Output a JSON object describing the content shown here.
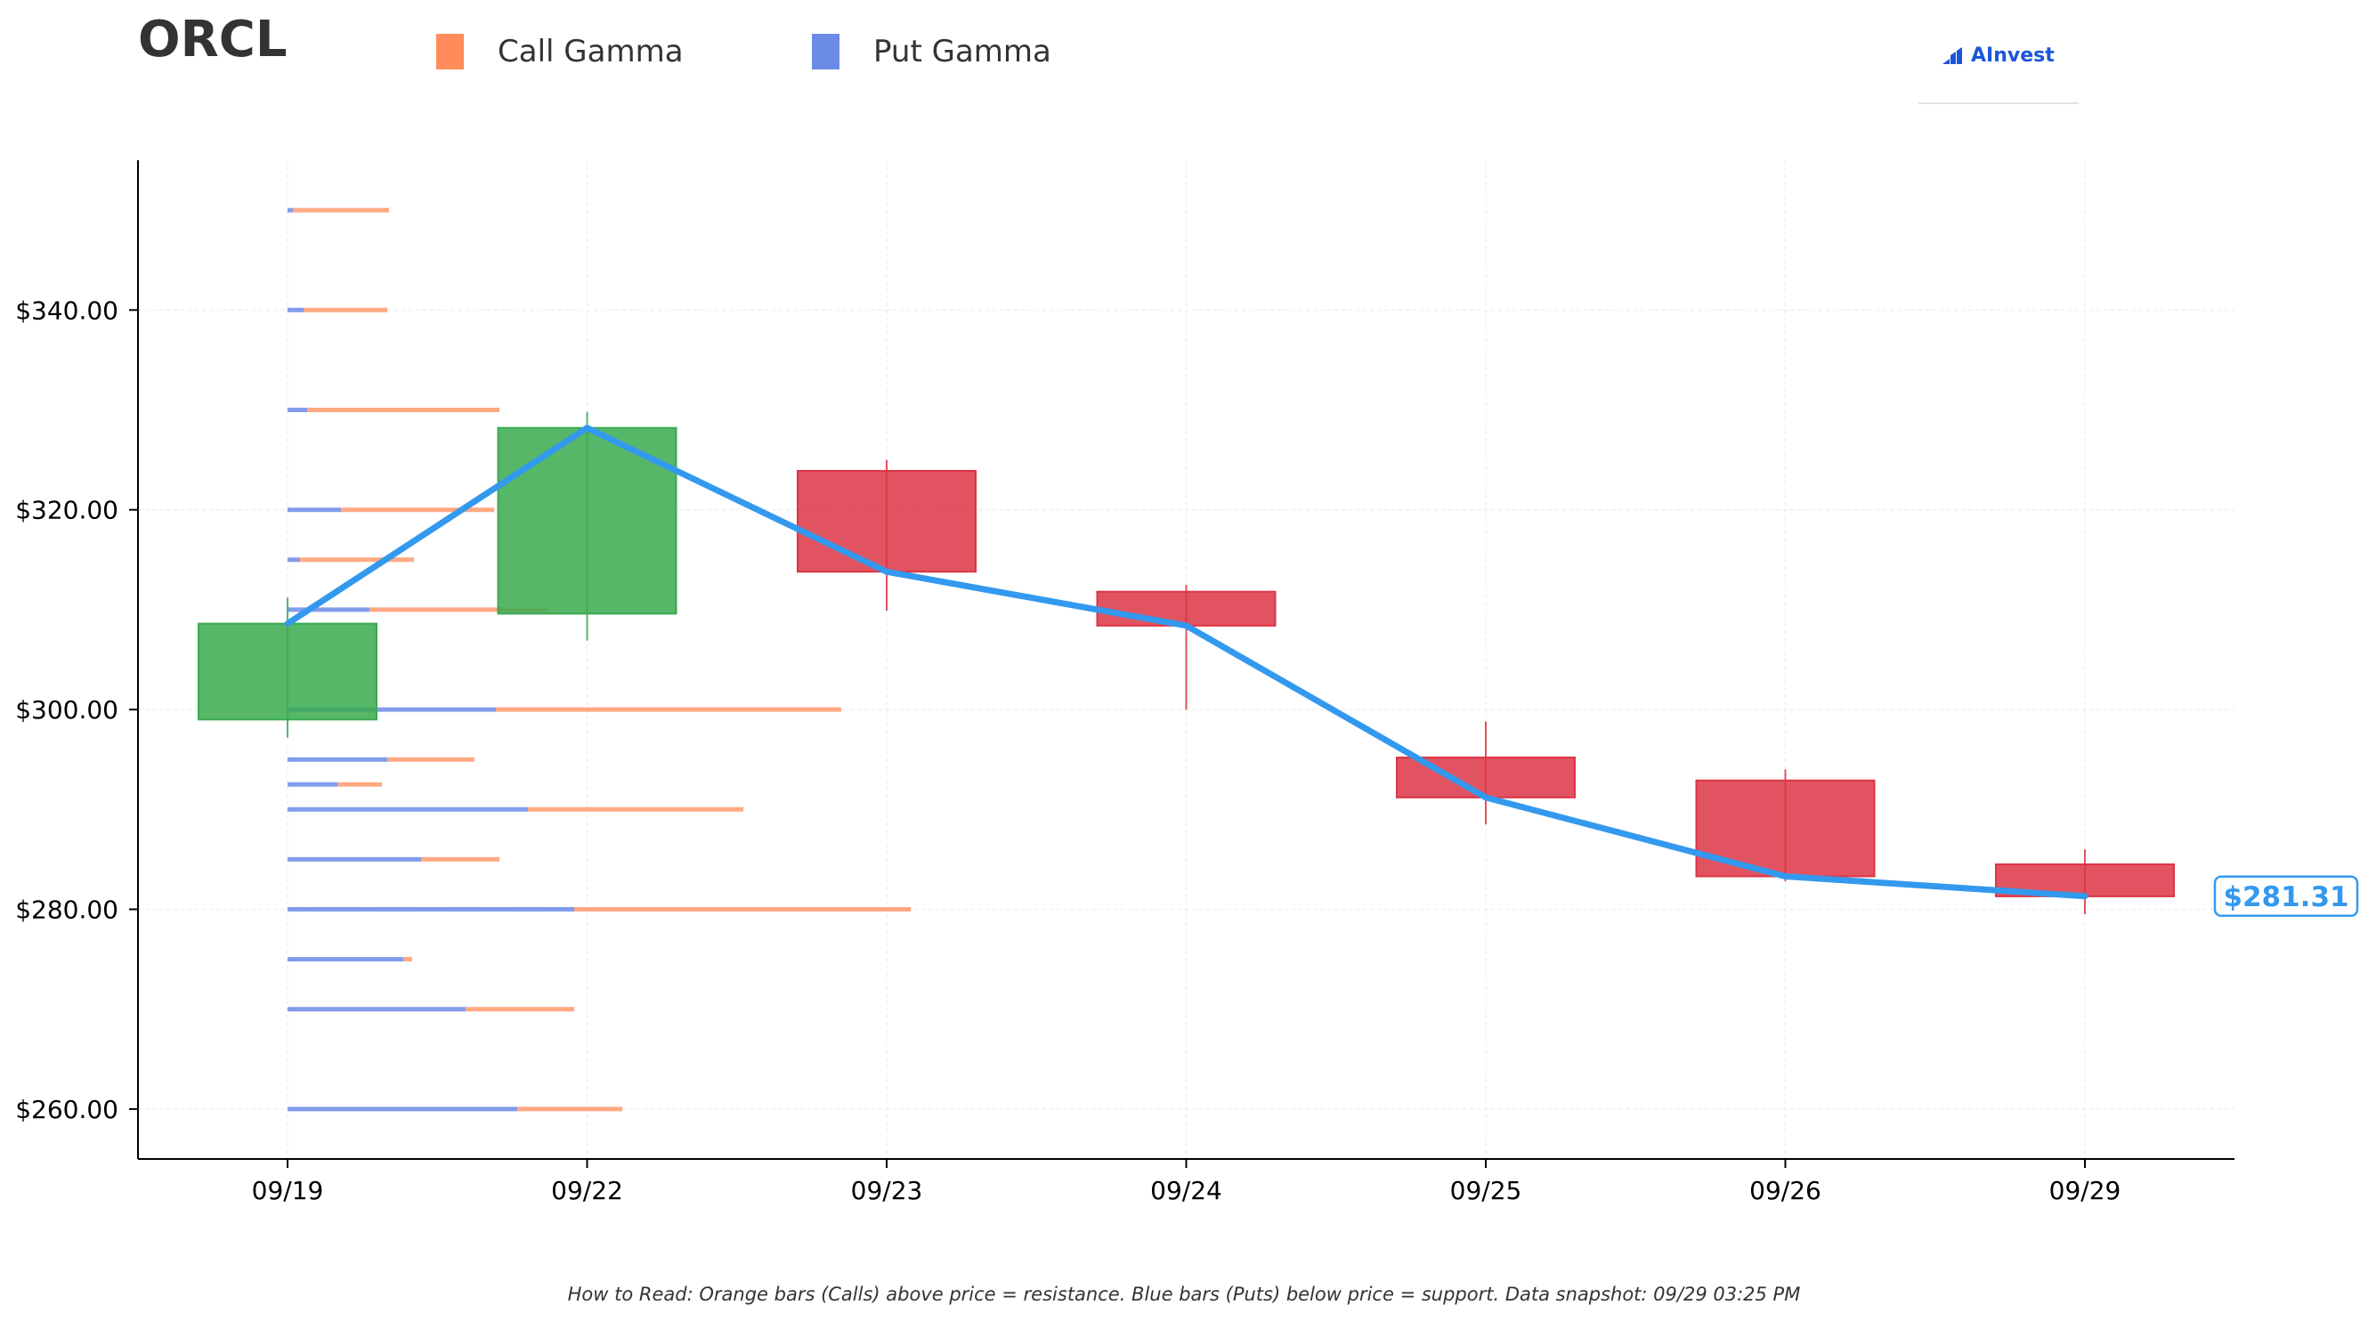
{
  "header": {
    "ticker": "ORCL",
    "legend": [
      {
        "label": "Call Gamma",
        "color": "#ff8c5a"
      },
      {
        "label": "Put Gamma",
        "color": "#6b8be6"
      }
    ],
    "brand": "AInvest"
  },
  "footnote": "How to Read: Orange bars (Calls) above price = resistance. Blue bars (Puts) below price = support. Data snapshot: 09/29 03:25 PM",
  "chart_data": {
    "type": "candlestick",
    "title": "ORCL",
    "xlabel": "",
    "ylabel": "",
    "ylim": [
      255,
      355
    ],
    "y_ticks": [
      260,
      280,
      300,
      320,
      340
    ],
    "y_tick_labels": [
      "$260.00",
      "$280.00",
      "$300.00",
      "$320.00",
      "$340.00"
    ],
    "grid": true,
    "categories": [
      "09/19",
      "09/22",
      "09/23",
      "09/24",
      "09/25",
      "09/26",
      "09/29"
    ],
    "candles": [
      {
        "date": "09/19",
        "open": 299.0,
        "high": 311.2,
        "low": 297.2,
        "close": 308.6
      },
      {
        "date": "09/22",
        "open": 309.6,
        "high": 329.8,
        "low": 306.9,
        "close": 328.2
      },
      {
        "date": "09/23",
        "open": 323.9,
        "high": 325.0,
        "low": 309.9,
        "close": 313.8
      },
      {
        "date": "09/24",
        "open": 311.8,
        "high": 312.5,
        "low": 300.0,
        "close": 308.4
      },
      {
        "date": "09/25",
        "open": 295.2,
        "high": 298.8,
        "low": 288.5,
        "close": 291.2
      },
      {
        "date": "09/26",
        "open": 292.9,
        "high": 294.0,
        "low": 282.8,
        "close": 283.3
      },
      {
        "date": "09/29",
        "open": 284.5,
        "high": 286.0,
        "low": 279.5,
        "close": 281.3
      }
    ],
    "close_line": {
      "color": "#3399ee",
      "values": [
        308.6,
        328.2,
        313.8,
        308.4,
        291.2,
        283.3,
        281.31
      ]
    },
    "last_price_label": "$281.31",
    "up_color": "#3aaa4f",
    "down_color": "#dc3545",
    "gamma_series": [
      {
        "name": "Put Gamma",
        "color": "#6b8be6"
      },
      {
        "name": "Call Gamma",
        "color": "#ff8c5a"
      }
    ],
    "gamma_exposure": [
      {
        "strike": 350,
        "put": 0.03,
        "call": 0.57
      },
      {
        "strike": 340,
        "put": 0.09,
        "call": 0.56
      },
      {
        "strike": 330,
        "put": 0.11,
        "call": 1.19
      },
      {
        "strike": 320,
        "put": 0.3,
        "call": 1.16
      },
      {
        "strike": 315,
        "put": 0.07,
        "call": 0.71
      },
      {
        "strike": 310,
        "put": 0.46,
        "call": 1.46
      },
      {
        "strike": 300,
        "put": 1.17,
        "call": 3.11
      },
      {
        "strike": 295,
        "put": 0.56,
        "call": 1.05
      },
      {
        "strike": 292.5,
        "put": 0.28,
        "call": 0.53
      },
      {
        "strike": 290,
        "put": 1.35,
        "call": 2.56
      },
      {
        "strike": 285,
        "put": 0.75,
        "call": 1.19
      },
      {
        "strike": 280,
        "put": 1.61,
        "call": 3.5
      },
      {
        "strike": 275,
        "put": 0.65,
        "call": 0.7
      },
      {
        "strike": 270,
        "put": 1.0,
        "call": 1.61
      },
      {
        "strike": 260,
        "put": 1.29,
        "call": 1.88
      }
    ]
  }
}
